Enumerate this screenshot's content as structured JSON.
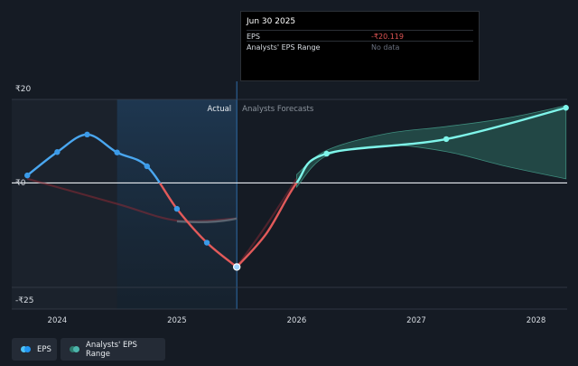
{
  "tooltip": {
    "date": "Jun 30 2025",
    "rows": [
      {
        "label": "EPS",
        "value": "-₹20.119",
        "value_color": "#e05555"
      },
      {
        "label": "Analysts' EPS Range",
        "value": "No data",
        "value_color": "#6b7280"
      }
    ]
  },
  "legend": {
    "eps": {
      "label": "EPS",
      "colors": [
        "#4fc3f7",
        "#2196f3"
      ]
    },
    "range": {
      "label": "Analysts' EPS Range",
      "colors": [
        "#2e7d6e",
        "#4db6ac"
      ]
    }
  },
  "chart_data": {
    "type": "line",
    "currency": "₹",
    "x_axis": {
      "type": "time",
      "range": [
        2023.62,
        2028.26
      ],
      "ticks": [
        2024,
        2025,
        2026,
        2027,
        2028
      ]
    },
    "y_axis": {
      "range": [
        -25,
        20
      ],
      "tick_labels": [
        {
          "value": 20,
          "label": "₹20"
        },
        {
          "value": 0,
          "label": "₹0"
        },
        {
          "value": -25,
          "label": "-₹25"
        }
      ]
    },
    "zones": {
      "past_start": 2024.5,
      "actual_end": 2025.5,
      "labels": {
        "actual": "Actual",
        "forecast": "Analysts Forecasts"
      }
    },
    "series": [
      {
        "name": "EPS (actual)",
        "kind": "actual",
        "x": [
          2023.75,
          2024.0,
          2024.25,
          2024.5,
          2024.75,
          2025.0,
          2025.25,
          2025.5
        ],
        "y": [
          1.8,
          7.4,
          11.6,
          7.3,
          4.0,
          -6.2,
          -14.3,
          -20.119
        ],
        "markers": [
          true,
          true,
          true,
          true,
          true,
          true,
          true,
          true
        ]
      },
      {
        "name": "EPS (forecast)",
        "kind": "forecast",
        "x": [
          2025.5,
          2025.75,
          2026.0,
          2026.25,
          2027.25,
          2028.25
        ],
        "y": [
          -20.119,
          -12,
          0,
          7,
          10.5,
          18
        ],
        "markers": [
          false,
          false,
          false,
          true,
          true,
          true
        ]
      },
      {
        "name": "Analysts' EPS Range",
        "kind": "range",
        "x": [
          2026.0,
          2026.25,
          2026.75,
          2027.25,
          2027.75,
          2028.25
        ],
        "low": [
          -1,
          6.5,
          9,
          7.5,
          4,
          1
        ],
        "high": [
          2,
          7.8,
          11.8,
          13.5,
          15.5,
          18.5
        ]
      },
      {
        "name": "Past trend",
        "kind": "ghost",
        "x": [
          2023.75,
          2024.5,
          2025.0,
          2025.5
        ],
        "y": [
          1,
          -5,
          -9,
          -8.5
        ]
      },
      {
        "name": "Forecast ghost",
        "kind": "ghost",
        "x": [
          2025.5,
          2025.75,
          2026.0
        ],
        "y": [
          -20.119,
          -10,
          1
        ]
      }
    ]
  }
}
